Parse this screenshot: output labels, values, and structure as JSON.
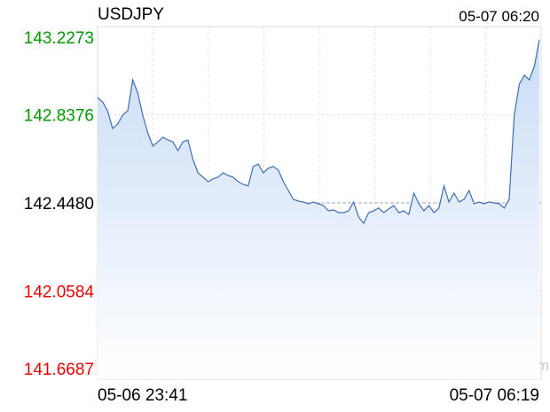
{
  "chart_data": {
    "type": "line",
    "title": "USDJPY",
    "timestamp": "05-07 06:20",
    "watermark": "sina.com",
    "x_start_label": "05-06 23:41",
    "x_end_label": "05-07 06:19",
    "ylim": [
      141.6687,
      143.2273
    ],
    "yticks": [
      141.6687,
      142.0584,
      {
        "value": 142.448,
        "label": "142.4480"
      },
      142.8376,
      143.2273
    ],
    "baseline": 142.448,
    "up_color": "#009900",
    "down_color": "#ee0000",
    "flat_color": "#000000",
    "color": "#3d6fb6",
    "values": [
      142.914,
      142.894,
      142.855,
      142.777,
      142.797,
      142.836,
      142.855,
      142.992,
      142.934,
      142.836,
      142.757,
      142.699,
      142.718,
      142.738,
      142.726,
      142.718,
      142.679,
      142.718,
      142.726,
      142.64,
      142.581,
      142.562,
      142.542,
      142.554,
      142.562,
      142.581,
      142.569,
      142.562,
      142.542,
      142.53,
      142.523,
      142.609,
      142.62,
      142.581,
      142.601,
      142.609,
      142.593,
      142.542,
      142.503,
      142.464,
      142.456,
      142.452,
      142.444,
      142.452,
      142.444,
      142.436,
      142.413,
      142.417,
      142.405,
      142.405,
      142.413,
      142.452,
      142.385,
      142.358,
      142.405,
      142.413,
      142.425,
      142.405,
      142.421,
      142.436,
      142.405,
      142.413,
      142.397,
      142.491,
      142.444,
      142.413,
      142.436,
      142.405,
      142.425,
      142.523,
      142.452,
      142.491,
      142.452,
      142.464,
      142.503,
      142.444,
      142.452,
      142.444,
      142.452,
      142.448,
      142.444,
      142.425,
      142.464,
      142.836,
      142.973,
      143.012,
      142.992,
      143.051,
      143.169
    ]
  }
}
